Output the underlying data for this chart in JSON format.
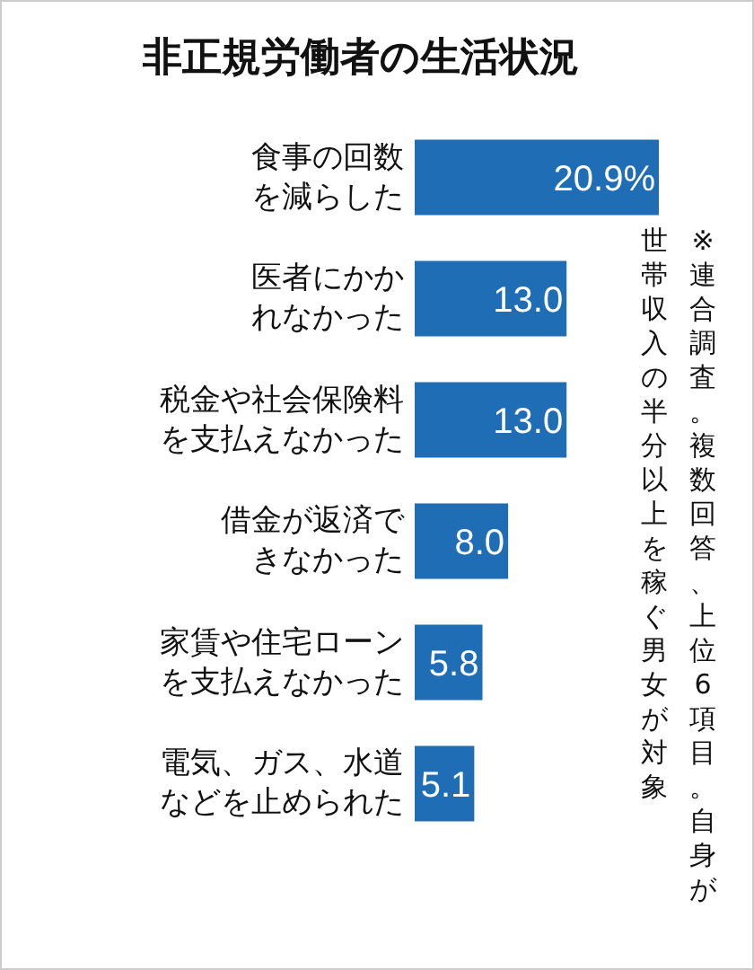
{
  "chart_data": {
    "type": "bar",
    "orientation": "horizontal",
    "title": "非正規労働者の生活状況",
    "categories": [
      "食事の回数を減らした",
      "医者にかかれなかった",
      "税金や社会保険料を支払えなかった",
      "借金が返済できなかった",
      "家賃や住宅ローンを支払えなかった",
      "電気、ガス、水道などを止められた"
    ],
    "values": [
      20.9,
      13.0,
      13.0,
      8.0,
      5.8,
      5.1
    ],
    "value_labels": [
      "20.9%",
      "13.0",
      "13.0",
      "8.0",
      "5.8",
      "5.1"
    ],
    "color": "#1f6db5",
    "annotations": [
      "※連合調査。複数回答、上位6項目。自身が世帯収入の半分以上を稼ぐ男女が対象"
    ]
  }
}
